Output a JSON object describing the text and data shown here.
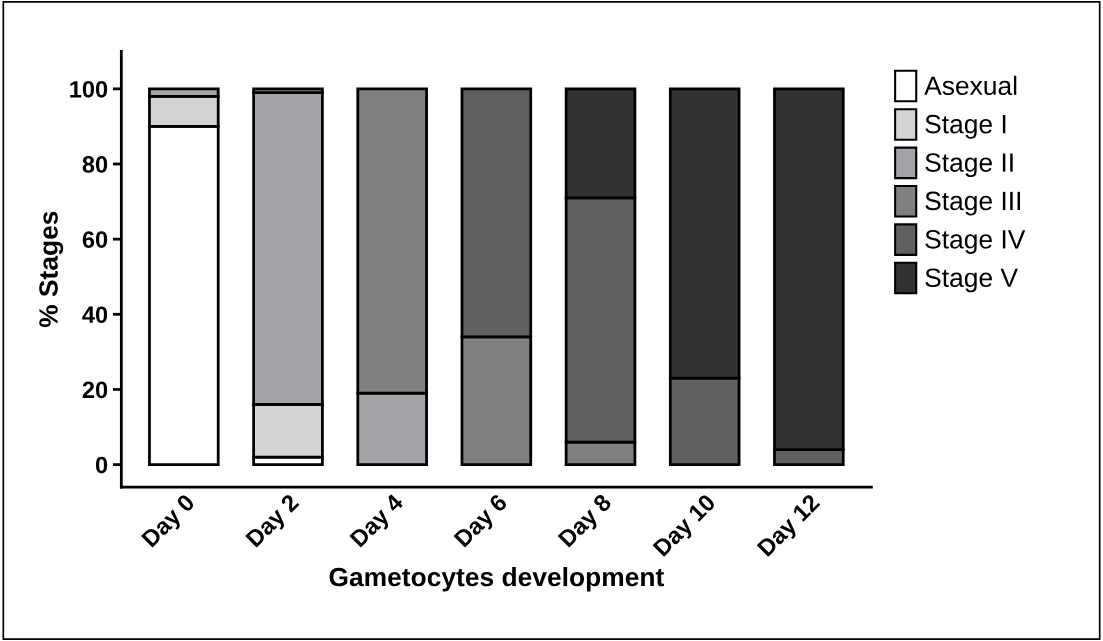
{
  "chart_data": {
    "type": "bar",
    "stacked": true,
    "xlabel": "Gametocytes development",
    "ylabel": "% Stages",
    "categories": [
      "Day 0",
      "Day 2",
      "Day 4",
      "Day 6",
      "Day 8",
      "Day 10",
      "Day 12"
    ],
    "series": [
      {
        "name": "Asexual",
        "color": "#ffffff",
        "values": [
          90,
          2,
          null,
          null,
          null,
          null,
          null
        ]
      },
      {
        "name": "Stage I",
        "color": "#d4d4d4",
        "values": [
          8,
          14,
          null,
          null,
          null,
          null,
          null
        ]
      },
      {
        "name": "Stage II",
        "color": "#a3a3a8",
        "values": [
          2,
          83,
          19,
          null,
          null,
          null,
          null
        ]
      },
      {
        "name": "Stage III",
        "color": "#808080",
        "values": [
          null,
          1,
          81,
          34,
          6,
          null,
          null
        ]
      },
      {
        "name": "Stage IV",
        "color": "#606060",
        "values": [
          null,
          null,
          null,
          66,
          65,
          23,
          4
        ]
      },
      {
        "name": "Stage V",
        "color": "#323232",
        "values": [
          null,
          null,
          null,
          null,
          29,
          77,
          96
        ]
      }
    ],
    "ylim": [
      -6,
      110
    ],
    "yticks": [
      0,
      20,
      40,
      60,
      80,
      100
    ],
    "grid": false,
    "legend": "right"
  }
}
